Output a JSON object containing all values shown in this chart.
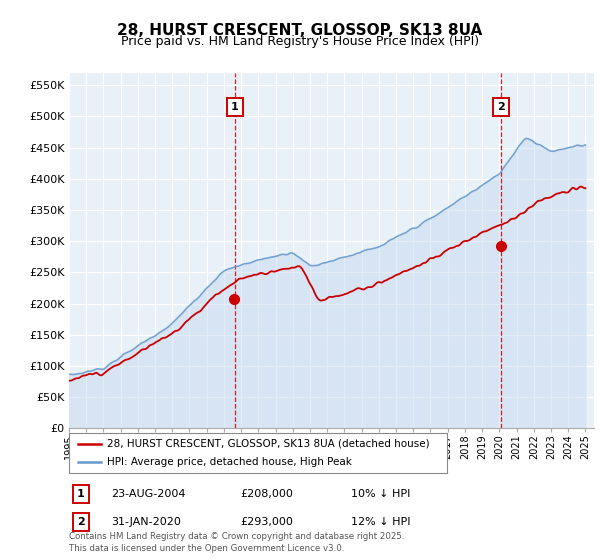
{
  "title": "28, HURST CRESCENT, GLOSSOP, SK13 8UA",
  "subtitle": "Price paid vs. HM Land Registry's House Price Index (HPI)",
  "ylabel_ticks": [
    "£0",
    "£50K",
    "£100K",
    "£150K",
    "£200K",
    "£250K",
    "£300K",
    "£350K",
    "£400K",
    "£450K",
    "£500K",
    "£550K"
  ],
  "ytick_values": [
    0,
    50000,
    100000,
    150000,
    200000,
    250000,
    300000,
    350000,
    400000,
    450000,
    500000,
    550000
  ],
  "ylim": [
    0,
    570000
  ],
  "xlim_start": 1995.0,
  "xlim_end": 2025.5,
  "marker1": {
    "x": 2004.644,
    "label": "1",
    "price": 208000,
    "date": "23-AUG-2004",
    "pct": "10% ↓ HPI"
  },
  "marker2": {
    "x": 2020.083,
    "label": "2",
    "price": 293000,
    "date": "31-JAN-2020",
    "pct": "12% ↓ HPI"
  },
  "legend_line1": "28, HURST CRESCENT, GLOSSOP, SK13 8UA (detached house)",
  "legend_line2": "HPI: Average price, detached house, High Peak",
  "footer": "Contains HM Land Registry data © Crown copyright and database right 2025.\nThis data is licensed under the Open Government Licence v3.0.",
  "color_red": "#cc0000",
  "color_blue": "#6699cc",
  "color_blue_fill": "#ddeeff",
  "background_color": "#ffffff",
  "grid_color": "#cccccc",
  "title_fontsize": 11,
  "subtitle_fontsize": 9,
  "tick_fontsize": 8
}
